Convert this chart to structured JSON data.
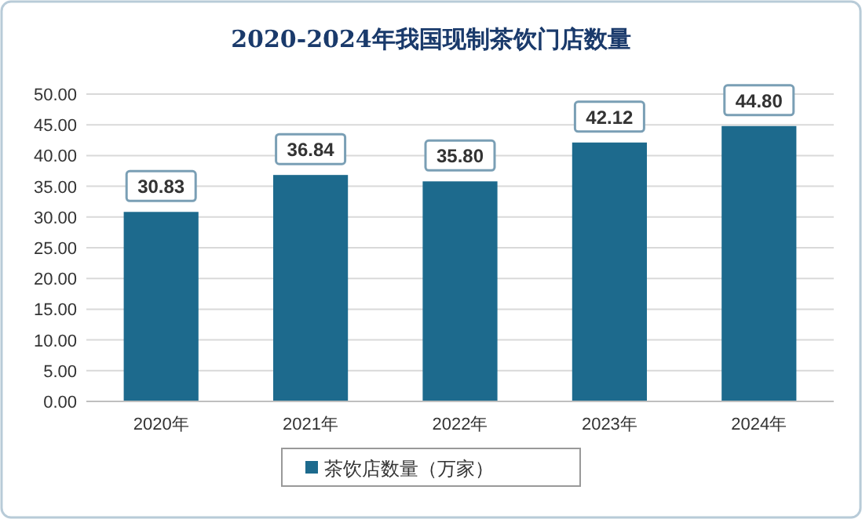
{
  "chart_data": {
    "type": "bar",
    "title": "2020-2024年我国现制茶饮门店数量",
    "categories": [
      "2020年",
      "2021年",
      "2022年",
      "2023年",
      "2024年"
    ],
    "series": [
      {
        "name": "茶饮店数量（万家）",
        "color": "#1d6a8d",
        "values": [
          30.83,
          36.84,
          35.8,
          42.12,
          44.8
        ],
        "value_labels": [
          "30.83",
          "36.84",
          "35.80",
          "42.12",
          "44.80"
        ]
      }
    ],
    "ylim": [
      0,
      50
    ],
    "yticks": [
      {
        "value": 0,
        "label": "0.00"
      },
      {
        "value": 5,
        "label": "5.00"
      },
      {
        "value": 10,
        "label": "10.00"
      },
      {
        "value": 15,
        "label": "15.00"
      },
      {
        "value": 20,
        "label": "20.00"
      },
      {
        "value": 25,
        "label": "25.00"
      },
      {
        "value": 30,
        "label": "30.00"
      },
      {
        "value": 35,
        "label": "35.00"
      },
      {
        "value": 40,
        "label": "40.00"
      },
      {
        "value": 45,
        "label": "45.00"
      },
      {
        "value": 50,
        "label": "50.00"
      }
    ],
    "grid": "y",
    "legend": "bottom"
  }
}
